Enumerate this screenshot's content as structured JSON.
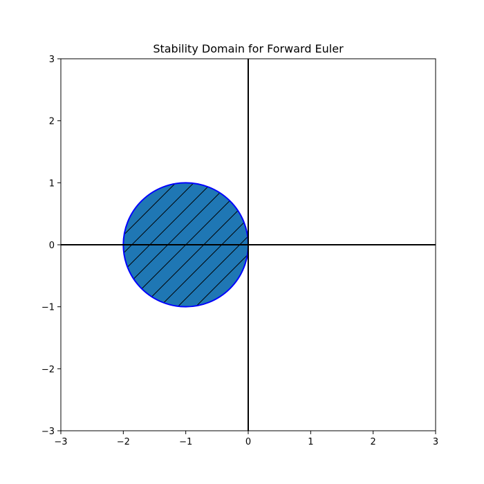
{
  "chart_data": {
    "type": "area",
    "title": "Stability Domain for Forward Euler",
    "xlabel": "",
    "ylabel": "",
    "xlim": [
      -3,
      3
    ],
    "ylim": [
      -3,
      3
    ],
    "xticks": [
      -3,
      -2,
      -1,
      0,
      1,
      2,
      3
    ],
    "yticks": [
      -3,
      -2,
      -1,
      0,
      1,
      2,
      3
    ],
    "xtick_labels": [
      "−3",
      "−2",
      "−1",
      "0",
      "1",
      "2",
      "3"
    ],
    "ytick_labels": [
      "−3",
      "−2",
      "−1",
      "0",
      "1",
      "2",
      "3"
    ],
    "grid": false,
    "reference_lines": {
      "x": 0,
      "y": 0
    },
    "region": {
      "shape": "circle",
      "center": [
        -1,
        0
      ],
      "radius": 1,
      "fill_color": "#1f77b4",
      "edge_color": "#0000ff",
      "hatch": "/"
    }
  }
}
